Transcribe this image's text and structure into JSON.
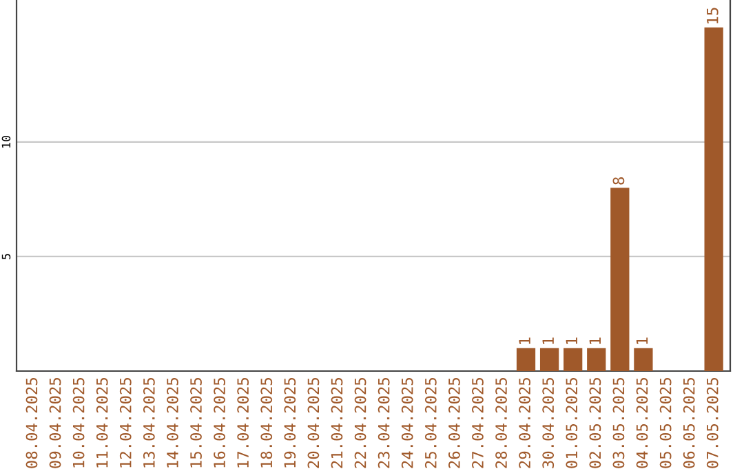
{
  "chart_data": {
    "type": "bar",
    "categories": [
      "08.04.2025",
      "09.04.2025",
      "10.04.2025",
      "11.04.2025",
      "12.04.2025",
      "13.04.2025",
      "14.04.2025",
      "15.04.2025",
      "16.04.2025",
      "17.04.2025",
      "18.04.2025",
      "19.04.2025",
      "20.04.2025",
      "21.04.2025",
      "22.04.2025",
      "23.04.2025",
      "24.04.2025",
      "25.04.2025",
      "26.04.2025",
      "27.04.2025",
      "28.04.2025",
      "29.04.2025",
      "30.04.2025",
      "01.05.2025",
      "02.05.2025",
      "03.05.2025",
      "04.05.2025",
      "05.05.2025",
      "06.05.2025",
      "07.05.2025"
    ],
    "values": [
      0,
      0,
      0,
      0,
      0,
      0,
      0,
      0,
      0,
      0,
      0,
      0,
      0,
      0,
      0,
      0,
      0,
      0,
      0,
      0,
      0,
      1,
      1,
      1,
      1,
      8,
      1,
      0,
      0,
      15
    ],
    "value_labels": [
      null,
      null,
      null,
      null,
      null,
      null,
      null,
      null,
      null,
      null,
      null,
      null,
      null,
      null,
      null,
      null,
      null,
      null,
      null,
      null,
      null,
      "1",
      "1",
      "1",
      "1",
      "8",
      "1",
      null,
      null,
      "15"
    ],
    "color": "#a0592a",
    "ylim": [
      0,
      16.2
    ],
    "yticks": [
      5,
      10
    ],
    "grid": "y"
  }
}
